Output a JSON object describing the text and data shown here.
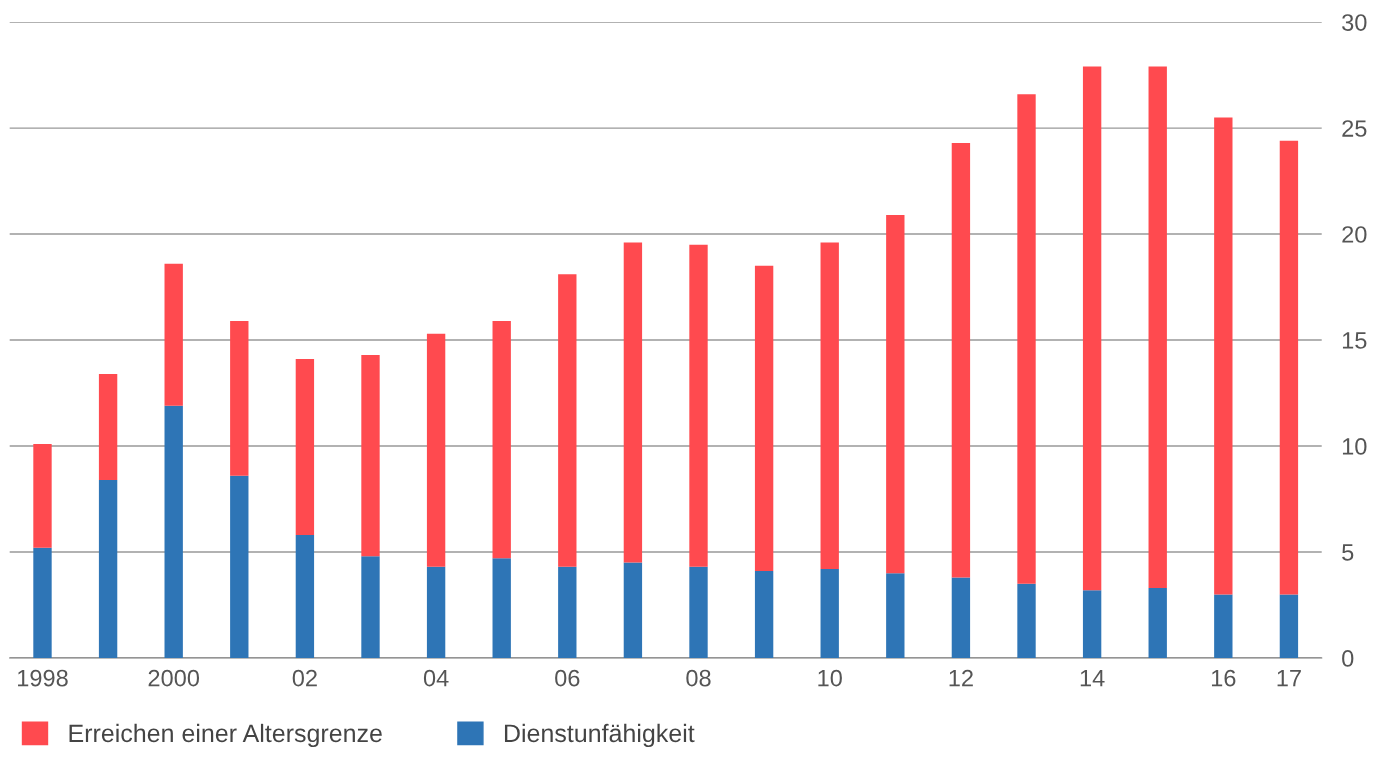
{
  "chart_data": {
    "type": "bar",
    "stacked": true,
    "categories": [
      "1998",
      null,
      "2000",
      null,
      "02",
      null,
      "04",
      null,
      "06",
      null,
      "08",
      null,
      "10",
      null,
      "12",
      null,
      "14",
      null,
      "16",
      "17"
    ],
    "series": [
      {
        "name": "Dienstunfähigkeit",
        "color": "#2e75b6",
        "values": [
          5.2,
          8.4,
          11.9,
          8.6,
          5.8,
          4.8,
          4.3,
          4.7,
          4.3,
          4.5,
          4.3,
          4.1,
          4.2,
          4.0,
          3.8,
          3.5,
          3.2,
          3.3,
          3.0,
          3.0
        ]
      },
      {
        "name": "Erreichen einer Altersgrenze",
        "color": "#ff4a4f",
        "values": [
          4.9,
          5.0,
          6.7,
          7.3,
          8.3,
          9.5,
          11.0,
          11.2,
          13.8,
          15.1,
          15.2,
          14.4,
          15.4,
          16.9,
          20.5,
          23.1,
          24.7,
          24.6,
          22.5,
          21.4
        ]
      }
    ],
    "ylim": [
      0,
      30
    ],
    "yticks": [
      0,
      5,
      10,
      15,
      20,
      25,
      30
    ],
    "grid": "y",
    "legend": "bottom left"
  }
}
